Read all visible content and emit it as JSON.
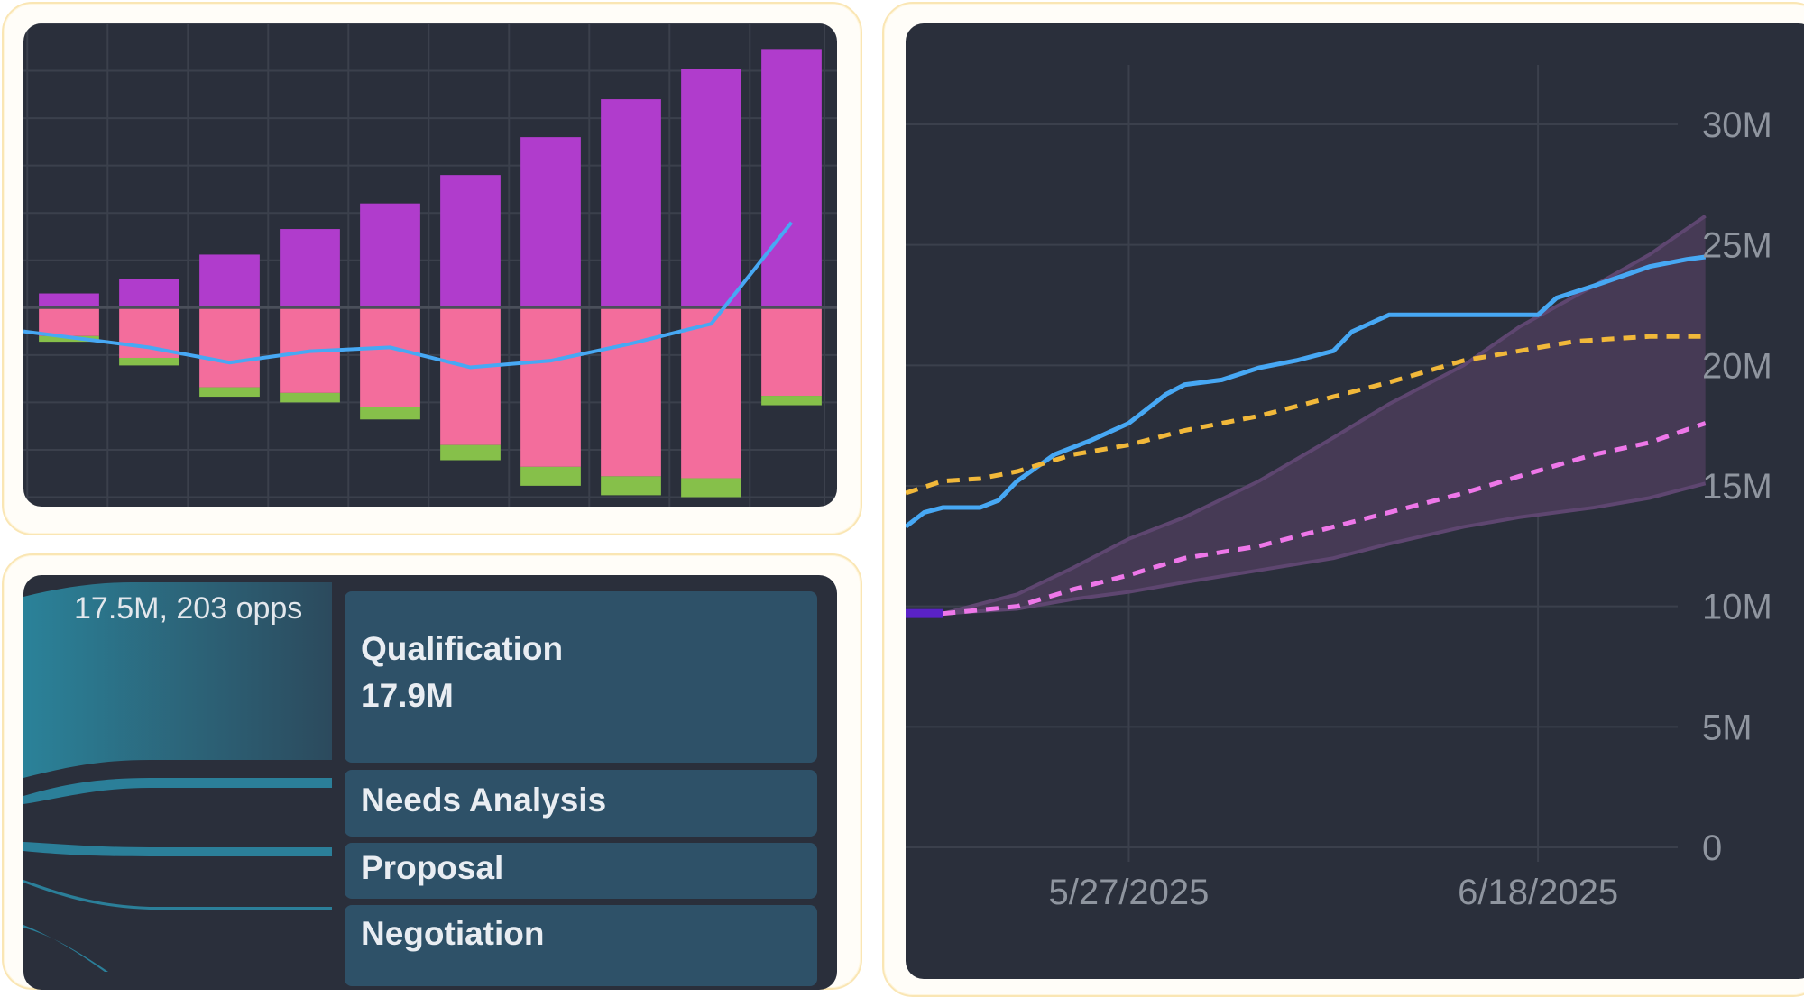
{
  "colors": {
    "panel_bg": "#2a2f3b",
    "grid": "#3b404c",
    "purple_bar": "#b03ccc",
    "pink_bar": "#f36d9c",
    "green_bar": "#86c04a",
    "blue_line": "#47a8f4",
    "gold_dash": "#f1b83a",
    "pink_dash": "#ee77e9",
    "band_fill": "#463a55",
    "band_edge": "#5e4670",
    "start_segment": "#5a22c6",
    "axis_text": "#8f959f",
    "stage_box": "#2e5168",
    "flow_band": "#2b7f99"
  },
  "left_chart": {
    "chart_data": {
      "type": "bar",
      "bars": [
        {
          "up": 1.5,
          "down": 3.0,
          "green": 0.6
        },
        {
          "up": 3.0,
          "down": 5.3,
          "green": 0.8
        },
        {
          "up": 5.6,
          "down": 8.4,
          "green": 1.0
        },
        {
          "up": 8.3,
          "down": 9.0,
          "green": 1.0
        },
        {
          "up": 11.0,
          "down": 10.5,
          "green": 1.3
        },
        {
          "up": 14.0,
          "down": 14.5,
          "green": 1.6
        },
        {
          "up": 18.0,
          "down": 16.8,
          "green": 2.0
        },
        {
          "up": 22.0,
          "down": 17.8,
          "green": 2.0
        },
        {
          "up": 25.2,
          "down": 18.0,
          "green": 2.0
        },
        {
          "up": 27.3,
          "down": 9.3,
          "green": 1.0
        }
      ],
      "line": [
        -2.5,
        -4.2,
        -5.8,
        -4.6,
        -4.2,
        -6.3,
        -5.6,
        -3.8,
        -1.7,
        9.0
      ],
      "ylim": [
        -21,
        30
      ]
    }
  },
  "funnel": {
    "flow_label": "17.5M, 203 opps",
    "stages": [
      {
        "label": "Qualification",
        "value": "17.9M"
      },
      {
        "label": "Needs Analysis",
        "value": ""
      },
      {
        "label": "Proposal",
        "value": ""
      },
      {
        "label": "Negotiation",
        "value": ""
      }
    ]
  },
  "right_chart": {
    "chart_data": {
      "type": "line",
      "x_start": "5/15/2025",
      "x_end": "7/2/2025",
      "xticks": [
        "5/27/2025",
        "6/18/2025"
      ],
      "ylim": [
        0,
        32
      ],
      "yticks": [
        {
          "value": 0,
          "label": "0"
        },
        {
          "value": 5,
          "label": "5M"
        },
        {
          "value": 10,
          "label": "10M"
        },
        {
          "value": 15,
          "label": "15M"
        },
        {
          "value": 20,
          "label": "20M"
        },
        {
          "value": 25,
          "label": "25M"
        },
        {
          "value": 30,
          "label": "30M"
        }
      ],
      "series": [
        {
          "style": "solid",
          "points": [
            [
              "5/15/2025",
              13.3
            ],
            [
              "5/16/2025",
              13.9
            ],
            [
              "5/17/2025",
              14.1
            ],
            [
              "5/19/2025",
              14.1
            ],
            [
              "5/20/2025",
              14.4
            ],
            [
              "5/21/2025",
              15.2
            ],
            [
              "5/23/2025",
              16.3
            ],
            [
              "5/25/2025",
              16.9
            ],
            [
              "5/27/2025",
              17.6
            ],
            [
              "5/29/2025",
              18.8
            ],
            [
              "5/30/2025",
              19.2
            ],
            [
              "6/1/2025",
              19.4
            ],
            [
              "6/3/2025",
              19.9
            ],
            [
              "6/5/2025",
              20.2
            ],
            [
              "6/7/2025",
              20.6
            ],
            [
              "6/8/2025",
              21.4
            ],
            [
              "6/10/2025",
              22.1
            ],
            [
              "6/12/2025",
              22.1
            ],
            [
              "6/18/2025",
              22.1
            ],
            [
              "6/19/2025",
              22.8
            ],
            [
              "6/21/2025",
              23.3
            ],
            [
              "6/24/2025",
              24.1
            ],
            [
              "6/26/2025",
              24.4
            ],
            [
              "6/27/2025",
              24.5
            ]
          ]
        },
        {
          "style": "dashed",
          "points": [
            [
              "5/15/2025",
              14.7
            ],
            [
              "5/17/2025",
              15.2
            ],
            [
              "5/19/2025",
              15.3
            ],
            [
              "5/21/2025",
              15.6
            ],
            [
              "5/24/2025",
              16.3
            ],
            [
              "5/27/2025",
              16.7
            ],
            [
              "5/30/2025",
              17.3
            ],
            [
              "6/3/2025",
              17.9
            ],
            [
              "6/7/2025",
              18.7
            ],
            [
              "6/10/2025",
              19.3
            ],
            [
              "6/14/2025",
              20.2
            ],
            [
              "6/17/2025",
              20.6
            ],
            [
              "6/20/2025",
              21.0
            ],
            [
              "6/24/2025",
              21.2
            ],
            [
              "6/27/2025",
              21.2
            ]
          ]
        },
        {
          "style": "dashed",
          "points": [
            [
              "5/17/2025",
              9.7
            ],
            [
              "5/21/2025",
              10.0
            ],
            [
              "5/24/2025",
              10.7
            ],
            [
              "5/27/2025",
              11.3
            ],
            [
              "5/30/2025",
              12.0
            ],
            [
              "6/3/2025",
              12.5
            ],
            [
              "6/7/2025",
              13.3
            ],
            [
              "6/10/2025",
              13.9
            ],
            [
              "6/14/2025",
              14.7
            ],
            [
              "6/17/2025",
              15.4
            ],
            [
              "6/21/2025",
              16.3
            ],
            [
              "6/24/2025",
              16.8
            ],
            [
              "6/27/2025",
              17.6
            ]
          ]
        }
      ],
      "band": {
        "upper": [
          [
            "5/17/2025",
            9.7
          ],
          [
            "5/21/2025",
            10.5
          ],
          [
            "5/24/2025",
            11.6
          ],
          [
            "5/27/2025",
            12.8
          ],
          [
            "5/30/2025",
            13.7
          ],
          [
            "6/3/2025",
            15.2
          ],
          [
            "6/7/2025",
            17.0
          ],
          [
            "6/10/2025",
            18.4
          ],
          [
            "6/14/2025",
            20.0
          ],
          [
            "6/17/2025",
            21.6
          ],
          [
            "6/21/2025",
            23.3
          ],
          [
            "6/24/2025",
            24.6
          ],
          [
            "6/27/2025",
            26.2
          ]
        ],
        "lower": [
          [
            "5/17/2025",
            9.7
          ],
          [
            "5/21/2025",
            9.9
          ],
          [
            "5/24/2025",
            10.3
          ],
          [
            "5/27/2025",
            10.6
          ],
          [
            "5/30/2025",
            11.0
          ],
          [
            "6/3/2025",
            11.5
          ],
          [
            "6/7/2025",
            12.0
          ],
          [
            "6/10/2025",
            12.6
          ],
          [
            "6/14/2025",
            13.3
          ],
          [
            "6/17/2025",
            13.7
          ],
          [
            "6/21/2025",
            14.1
          ],
          [
            "6/24/2025",
            14.5
          ],
          [
            "6/27/2025",
            15.1
          ]
        ]
      },
      "start_segment": [
        [
          "5/15/2025",
          9.7
        ],
        [
          "5/17/2025",
          9.7
        ]
      ]
    }
  }
}
